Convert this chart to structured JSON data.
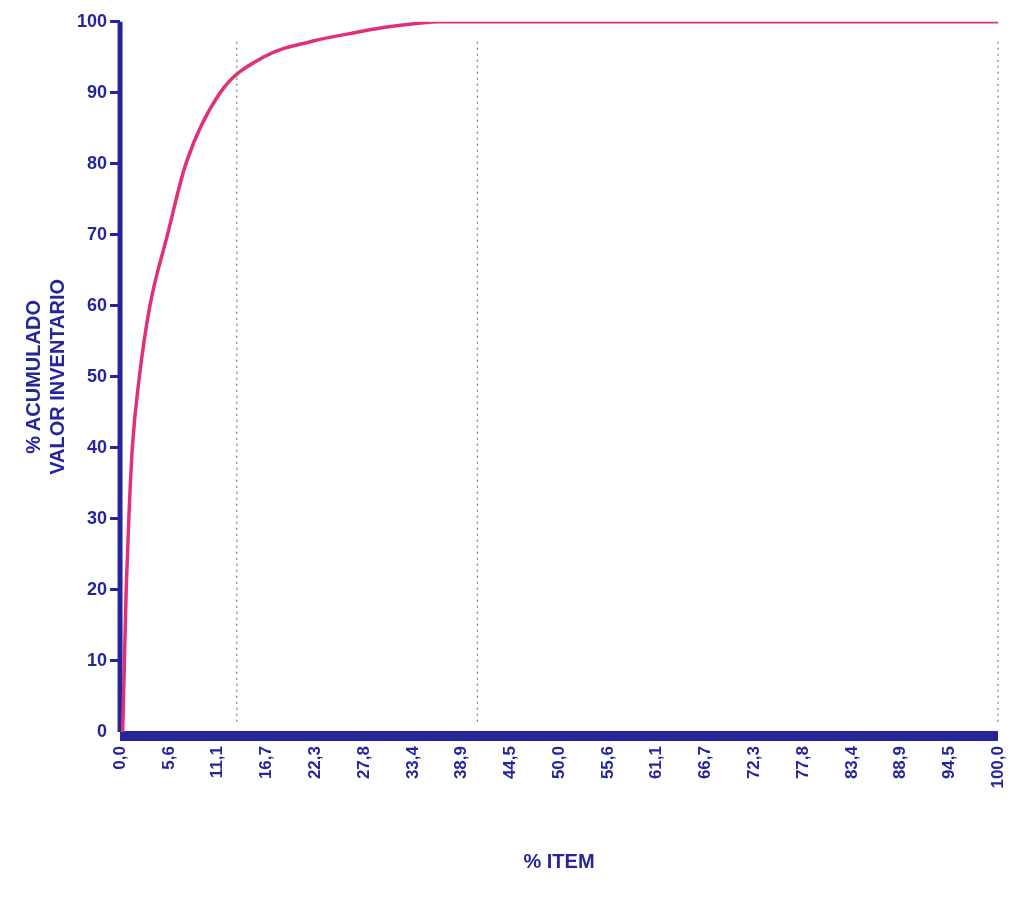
{
  "chart_data": {
    "type": "line",
    "xlabel": "% ITEM",
    "ylabel": "% ACUMULADO\nVALOR INVENTARIO",
    "series": [
      {
        "color": "#e0307a",
        "x": [
          0.3,
          0.5,
          0.7,
          1.0,
          1.4,
          2.2,
          3.4,
          5.4,
          7.5,
          11.4,
          16.3,
          22,
          26,
          30,
          34,
          36.4,
          50,
          70,
          100
        ],
        "values": [
          0,
          10,
          20,
          30,
          40,
          50,
          60,
          70,
          80,
          90,
          95,
          97.3,
          98.3,
          99.2,
          99.8,
          100,
          100,
          100,
          100
        ]
      }
    ],
    "xlim": [
      0,
      100
    ],
    "ylim": [
      0,
      100
    ],
    "xticks": [
      {
        "value": 0,
        "label": "0,0"
      },
      {
        "value": 5.6,
        "label": "5,6"
      },
      {
        "value": 11.1,
        "label": "11,1"
      },
      {
        "value": 16.7,
        "label": "16,7"
      },
      {
        "value": 22.3,
        "label": "22,3"
      },
      {
        "value": 27.8,
        "label": "27,8"
      },
      {
        "value": 33.4,
        "label": "33,4"
      },
      {
        "value": 38.9,
        "label": "38,9"
      },
      {
        "value": 44.5,
        "label": "44,5"
      },
      {
        "value": 50,
        "label": "50,0"
      },
      {
        "value": 55.6,
        "label": "55,6"
      },
      {
        "value": 61.1,
        "label": "61,1"
      },
      {
        "value": 66.7,
        "label": "66,7"
      },
      {
        "value": 72.3,
        "label": "72,3"
      },
      {
        "value": 77.8,
        "label": "77,8"
      },
      {
        "value": 83.4,
        "label": "83,4"
      },
      {
        "value": 88.9,
        "label": "88,9"
      },
      {
        "value": 94.5,
        "label": "94,5"
      },
      {
        "value": 100,
        "label": "100,0"
      }
    ],
    "yticks": [
      0,
      10,
      20,
      30,
      40,
      50,
      60,
      70,
      80,
      90,
      100
    ],
    "ref_lines": [
      {
        "axis": "x",
        "value": 13.3,
        "color": "#777777",
        "line_style": "dotted"
      },
      {
        "axis": "x",
        "value": 40.7,
        "color": "#777777",
        "line_style": "dotted"
      },
      {
        "axis": "x",
        "value": 100,
        "color": "#777777",
        "line_style": "dotted"
      }
    ],
    "grid": false,
    "legend": false,
    "marker": "none",
    "line_style": "solid"
  }
}
